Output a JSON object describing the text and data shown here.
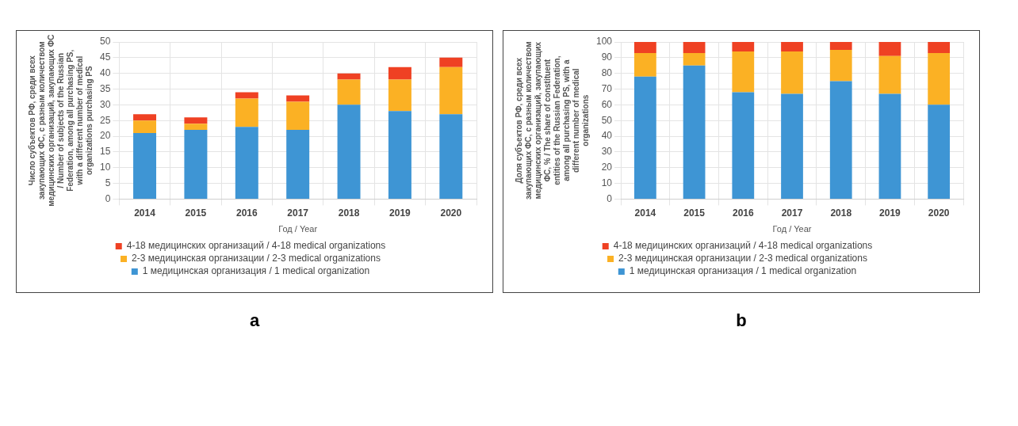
{
  "chart_data": [
    {
      "type": "bar",
      "stacked": true,
      "categories": [
        "2014",
        "2015",
        "2016",
        "2017",
        "2018",
        "2019",
        "2020"
      ],
      "xlabel": "Год / Year",
      "ylabel": "Число субъектов РФ, среди всех закупающих ФС, с разным количеством медицинских организаций, закупающих ФС / Number of subjects of the Russian Federation, among all purchasing PS, with a different number of medical organizations purchasing PS",
      "ylim": [
        0,
        50
      ],
      "yticks": [
        0,
        5,
        10,
        15,
        20,
        25,
        30,
        35,
        40,
        45,
        50
      ],
      "grid": true,
      "legend": "bottom",
      "annotations": [
        "a"
      ],
      "series": [
        {
          "name": "1 медицинская организация / 1 medical organization",
          "color": "#3e95d4",
          "values": [
            21,
            22,
            23,
            22,
            30,
            28,
            27
          ]
        },
        {
          "name": "2-3 медицинская организации / 2-3 medical organizations",
          "color": "#fbb124",
          "values": [
            4,
            2,
            9,
            9,
            8,
            10,
            15
          ]
        },
        {
          "name": "4-18 медицинских организаций / 4-18 medical organizations",
          "color": "#ef4123",
          "values": [
            2,
            2,
            2,
            2,
            2,
            4,
            3
          ]
        }
      ]
    },
    {
      "type": "bar",
      "stacked": true,
      "categories": [
        "2014",
        "2015",
        "2016",
        "2017",
        "2018",
        "2019",
        "2020"
      ],
      "xlabel": "Год / Year",
      "ylabel": "Доля субъектов РФ, среди всех закупающих ФС, с разным количеством медицинских организаций, закупающих ФС, % / The share of constituent entities of the Russian Federation, among all purchasing PS, with a different number of medical organizations",
      "ylim": [
        0,
        100
      ],
      "yticks": [
        0,
        10,
        20,
        30,
        40,
        50,
        60,
        70,
        80,
        90,
        100
      ],
      "grid": true,
      "legend": "bottom",
      "annotations": [
        "b"
      ],
      "series": [
        {
          "name": "1 медицинская организация / 1 medical organization",
          "color": "#3e95d4",
          "values": [
            78,
            85,
            68,
            67,
            75,
            67,
            60
          ]
        },
        {
          "name": "2-3 медицинская организации / 2-3 medical organizations",
          "color": "#fbb124",
          "values": [
            15,
            8,
            26,
            27,
            20,
            24,
            33
          ]
        },
        {
          "name": "4-18 медицинских организаций / 4-18 medical organizations",
          "color": "#ef4123",
          "values": [
            7,
            7,
            6,
            6,
            5,
            9,
            7
          ]
        }
      ]
    }
  ]
}
